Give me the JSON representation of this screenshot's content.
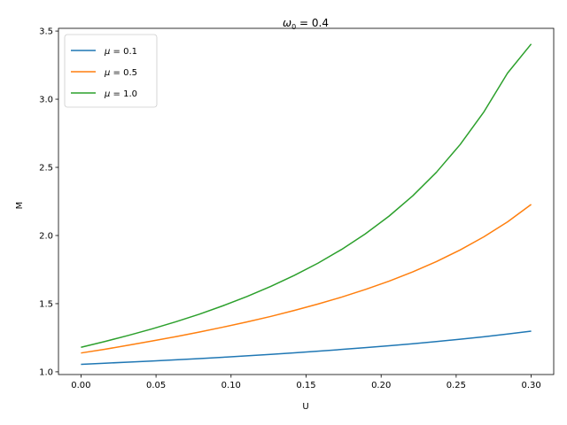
{
  "chart_data": {
    "type": "line",
    "title": "ω0 = 0.4",
    "title_base": "ω",
    "title_sub": "0",
    "title_rest": " = 0.4",
    "xlabel": "U",
    "ylabel": "M",
    "xlim": [
      -0.015,
      0.315
    ],
    "ylim": [
      0.98,
      3.52
    ],
    "xticks": [
      0.0,
      0.05,
      0.1,
      0.15,
      0.2,
      0.25,
      0.3
    ],
    "xtick_labels": [
      "0.00",
      "0.05",
      "0.10",
      "0.15",
      "0.20",
      "0.25",
      "0.30"
    ],
    "yticks": [
      1.0,
      1.5,
      2.0,
      2.5,
      3.0,
      3.5
    ],
    "ytick_labels": [
      "1.0",
      "1.5",
      "2.0",
      "2.5",
      "3.0",
      "3.5"
    ],
    "grid": false,
    "legend_position": "top-left",
    "x": [
      0.0,
      0.015789,
      0.031579,
      0.047368,
      0.063158,
      0.078947,
      0.094737,
      0.110526,
      0.126316,
      0.142105,
      0.157895,
      0.173684,
      0.189474,
      0.205263,
      0.221053,
      0.236842,
      0.252632,
      0.268421,
      0.284211,
      0.3
    ],
    "series": [
      {
        "name": "μ = 0.1",
        "legend_symbol": "μ",
        "legend_value": " = 0.1",
        "color": "#1f77b4",
        "values": [
          1.055,
          1.063,
          1.071,
          1.079,
          1.088,
          1.097,
          1.107,
          1.117,
          1.128,
          1.139,
          1.151,
          1.164,
          1.177,
          1.191,
          1.206,
          1.222,
          1.239,
          1.257,
          1.277,
          1.298
        ]
      },
      {
        "name": "μ = 0.5",
        "legend_symbol": "μ",
        "legend_value": " = 0.5",
        "color": "#ff7f0e",
        "values": [
          1.138,
          1.165,
          1.195,
          1.226,
          1.258,
          1.292,
          1.328,
          1.366,
          1.406,
          1.45,
          1.497,
          1.548,
          1.604,
          1.665,
          1.733,
          1.809,
          1.894,
          1.99,
          2.1,
          2.228
        ]
      },
      {
        "name": "μ = 1.0",
        "legend_symbol": "μ",
        "legend_value": " = 1.0",
        "color": "#2ca02c",
        "values": [
          1.18,
          1.222,
          1.267,
          1.315,
          1.367,
          1.423,
          1.485,
          1.552,
          1.626,
          1.707,
          1.797,
          1.898,
          2.012,
          2.142,
          2.291,
          2.464,
          2.667,
          2.906,
          3.191,
          3.405
        ]
      }
    ]
  }
}
